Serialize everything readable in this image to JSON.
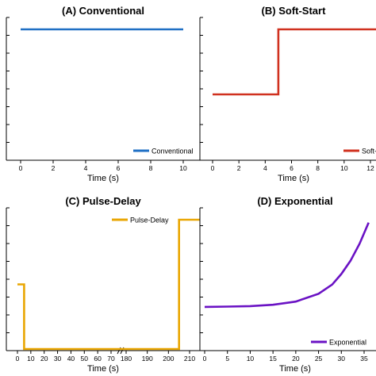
{
  "chart_data": [
    {
      "type": "line",
      "title": "(A) Conventional",
      "xlabel": "Time (s)",
      "ylabel": "",
      "xlim": [
        -1,
        10.5
      ],
      "ylim": [
        0,
        1.2
      ],
      "xticks": [
        0,
        2,
        4,
        6,
        8,
        10
      ],
      "grid": false,
      "legend_position": "bottom-right",
      "series": [
        {
          "name": "Conventional",
          "color": "#1f6fc4",
          "x": [
            0,
            10
          ],
          "y": [
            1,
            1
          ]
        }
      ]
    },
    {
      "type": "line",
      "title": "(B) Soft-Start",
      "xlabel": "Time (s)",
      "ylabel": "",
      "xlim": [
        -1,
        12.5
      ],
      "ylim": [
        0,
        1.2
      ],
      "xticks": [
        0,
        2,
        4,
        6,
        8,
        10,
        12
      ],
      "grid": false,
      "legend_position": "bottom-right",
      "series": [
        {
          "name": "Soft-Start",
          "color": "#d0311f",
          "x": [
            0,
            5,
            5,
            12.5
          ],
          "y": [
            0.5,
            0.5,
            1,
            1
          ]
        }
      ]
    },
    {
      "type": "line",
      "title": "(C) Pulse-Delay",
      "xlabel": "Time (s)",
      "ylabel": "",
      "broken_axis": {
        "segments": [
          [
            -2,
            72
          ],
          [
            172,
            215
          ]
        ],
        "ticks_left": [
          0,
          10,
          20,
          30,
          40,
          50,
          60,
          70
        ],
        "ticks_right": [
          180,
          190,
          200,
          210
        ]
      },
      "ylim": [
        0,
        1.0
      ],
      "grid": false,
      "legend_position": "top-right",
      "series": [
        {
          "name": "Pulse-Delay",
          "color": "#e9a602",
          "x": [
            0,
            5,
            5,
            205,
            205,
            215
          ],
          "y": [
            0.5,
            0.5,
            0,
            0,
            1,
            1
          ]
        }
      ]
    },
    {
      "type": "line",
      "title": "(D) Exponential",
      "xlabel": "Time (s)",
      "ylabel": "",
      "xlim": [
        -1,
        37
      ],
      "ylim": [
        0,
        1.1
      ],
      "xticks": [
        0,
        5,
        10,
        15,
        20,
        25,
        30,
        35
      ],
      "grid": false,
      "legend_position": "bottom-right",
      "series": [
        {
          "name": "Exponential",
          "color": "#6a12c4",
          "x": [
            0,
            5,
            10,
            15,
            20,
            25,
            28,
            30,
            32,
            34,
            36
          ],
          "y": [
            0.32,
            0.322,
            0.326,
            0.336,
            0.36,
            0.42,
            0.49,
            0.57,
            0.67,
            0.8,
            0.96
          ]
        }
      ]
    }
  ]
}
